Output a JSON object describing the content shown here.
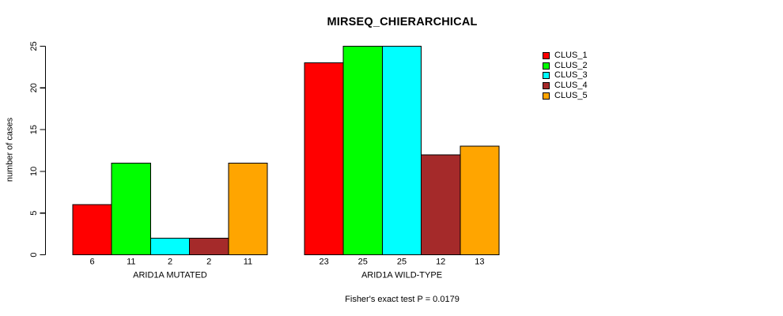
{
  "chart_data": {
    "type": "bar",
    "title": "MIRSEQ_CHIERARCHICAL",
    "ylabel": "number of cases",
    "ylim": [
      0,
      25
    ],
    "yticks": [
      0,
      5,
      10,
      15,
      20,
      25
    ],
    "grid": false,
    "legend_position": "right",
    "categories": [
      "ARID1A MUTATED",
      "ARID1A WILD-TYPE"
    ],
    "series": [
      {
        "name": "CLUS_1",
        "color": "#FF0000",
        "values": [
          6,
          23
        ]
      },
      {
        "name": "CLUS_2",
        "color": "#00FF00",
        "values": [
          11,
          25
        ]
      },
      {
        "name": "CLUS_3",
        "color": "#00FFFF",
        "values": [
          2,
          25
        ]
      },
      {
        "name": "CLUS_4",
        "color": "#A52A2A",
        "values": [
          2,
          12
        ]
      },
      {
        "name": "CLUS_5",
        "color": "#FFA500",
        "values": [
          11,
          13
        ]
      }
    ],
    "bar_value_labels": [
      [
        6,
        11,
        2,
        2,
        11
      ],
      [
        23,
        25,
        25,
        12,
        13
      ]
    ],
    "annotation": "Fisher's exact test P = 0.0179",
    "axis_color": "#000000",
    "bar_border_color": "#000000"
  }
}
